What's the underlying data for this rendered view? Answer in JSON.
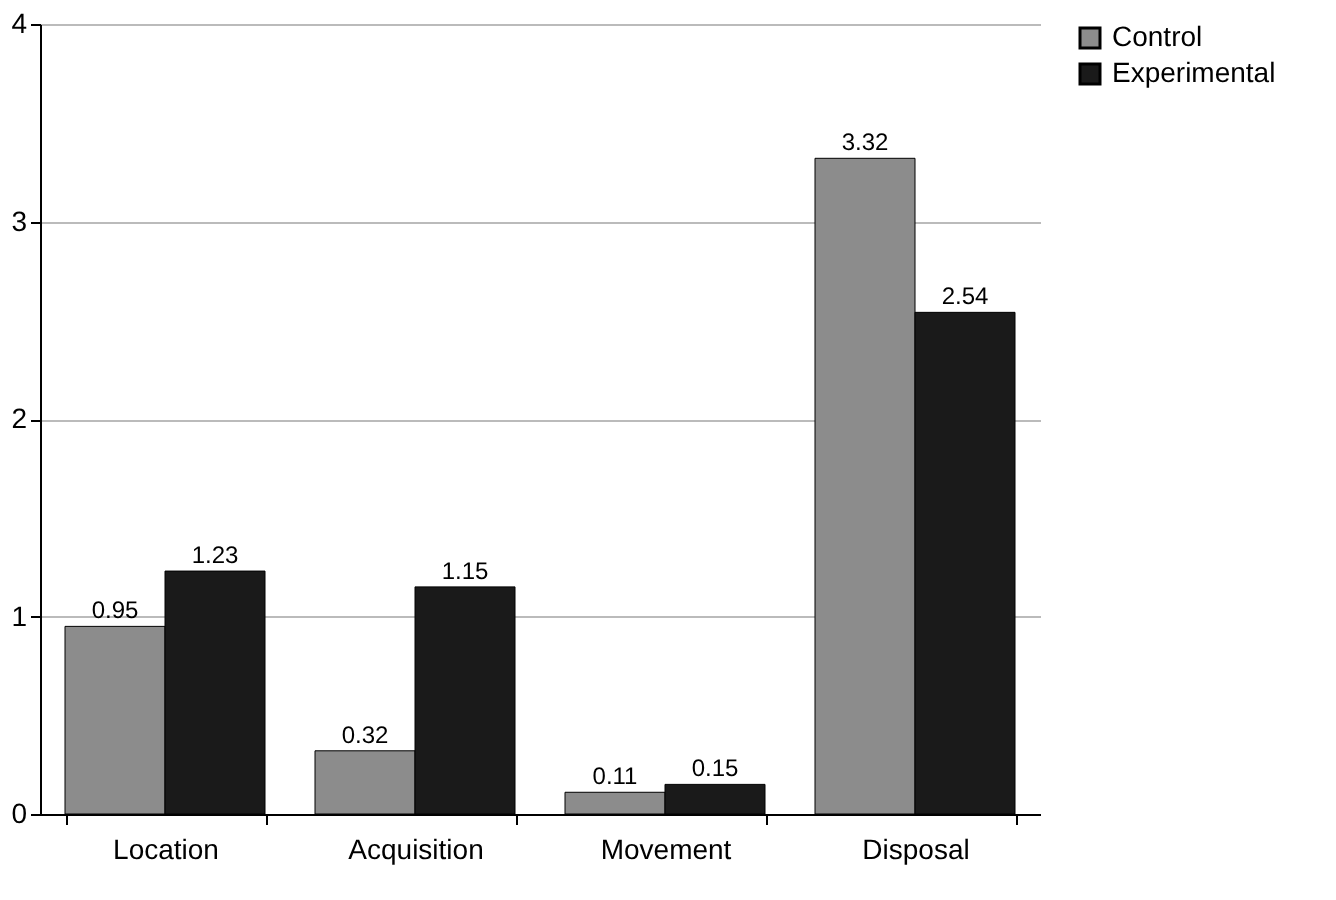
{
  "chart_data": {
    "type": "bar",
    "categories": [
      "Location",
      "Acquisition",
      "Movement",
      "Disposal"
    ],
    "series": [
      {
        "name": "Control",
        "color": "#8c8c8c",
        "values": [
          0.95,
          0.32,
          0.11,
          3.32
        ]
      },
      {
        "name": "Experimental",
        "color": "#1a1a1a",
        "values": [
          1.23,
          1.15,
          0.15,
          2.54
        ]
      }
    ],
    "ylim": [
      0,
      4
    ],
    "yticks": [
      0,
      1,
      2,
      3,
      4
    ],
    "grid": "y",
    "legend": "right",
    "data_labels": true
  }
}
